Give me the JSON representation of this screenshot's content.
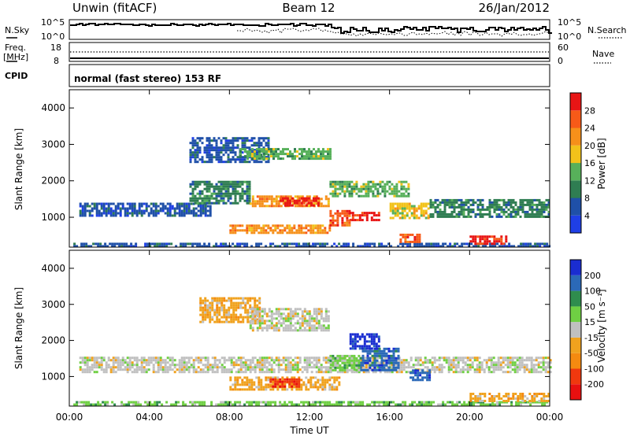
{
  "header": {
    "station": "Unwin (fitACF)",
    "beam": "Beam 12",
    "date": "26/Jan/2012"
  },
  "top_panels": {
    "nsky_label": "N.Sky",
    "nsearch_label": "N.Search",
    "freq_label_1": "Freq.",
    "freq_label_2": "[MHz]",
    "nave_label": "Nave",
    "cpid_label": "CPID",
    "cpid_text": "normal (fast stereo) 153 RF",
    "noise_ticks_left": [
      "10^5",
      "10^0"
    ],
    "noise_ticks_right": [
      "10^5",
      "10^0"
    ],
    "freq_ticks": [
      "18",
      "8"
    ],
    "nave_ticks": [
      "60",
      "0"
    ]
  },
  "chart_data": [
    {
      "type": "heatmap",
      "quantity": "Power",
      "ylabel": "Slant Range [km]",
      "xlabel": "",
      "yticks": [
        "1000",
        "2000",
        "3000",
        "4000"
      ],
      "ylim": [
        180,
        4500
      ],
      "colorbar": {
        "label": "Power [dB]",
        "ticks": [
          "4",
          "8",
          "12",
          "16",
          "20",
          "24",
          "28"
        ],
        "colors": [
          "#1f3fe6",
          "#1f50a8",
          "#2f7d52",
          "#57b05a",
          "#f2c21a",
          "#f6901a",
          "#f75a18",
          "#e81515"
        ]
      },
      "bands": [
        {
          "t0": 0.2,
          "t1": 24,
          "r0": 200,
          "r1": 300,
          "level": 1
        },
        {
          "t0": 0.5,
          "t1": 7,
          "r0": 1050,
          "r1": 1400,
          "level": 1
        },
        {
          "t0": 6,
          "t1": 10,
          "r0": 2500,
          "r1": 3200,
          "level": 1
        },
        {
          "t0": 8.5,
          "t1": 13,
          "r0": 2600,
          "r1": 2900,
          "level": 3
        },
        {
          "t0": 6,
          "t1": 9,
          "r0": 1400,
          "r1": 2000,
          "level": 2
        },
        {
          "t0": 9,
          "t1": 13,
          "r0": 1300,
          "r1": 1600,
          "level": 5
        },
        {
          "t0": 10.5,
          "t1": 12.5,
          "r0": 1350,
          "r1": 1550,
          "level": 7
        },
        {
          "t0": 13,
          "t1": 17,
          "r0": 1550,
          "r1": 2000,
          "level": 3
        },
        {
          "t0": 14,
          "t1": 15.5,
          "r0": 950,
          "r1": 1150,
          "level": 7
        },
        {
          "t0": 8,
          "t1": 13,
          "r0": 550,
          "r1": 800,
          "level": 5
        },
        {
          "t0": 13,
          "t1": 14,
          "r0": 800,
          "r1": 1200,
          "level": 6
        },
        {
          "t0": 16,
          "t1": 18,
          "r0": 1000,
          "r1": 1400,
          "level": 4
        },
        {
          "t0": 18,
          "t1": 24,
          "r0": 1000,
          "r1": 1500,
          "level": 2
        },
        {
          "t0": 20,
          "t1": 21.8,
          "r0": 300,
          "r1": 500,
          "level": 7
        },
        {
          "t0": 16.5,
          "t1": 17.5,
          "r0": 300,
          "r1": 550,
          "level": 6
        }
      ]
    },
    {
      "type": "heatmap",
      "quantity": "Velocity",
      "ylabel": "Slant Range [km]",
      "xlabel": "Time UT",
      "xticks": [
        "00:00",
        "04:00",
        "08:00",
        "12:00",
        "16:00",
        "20:00",
        "00:00"
      ],
      "yticks": [
        "1000",
        "2000",
        "3000",
        "4000"
      ],
      "ylim": [
        180,
        4500
      ],
      "colorbar": {
        "label": "Velocity [m s⁻¹]",
        "ticks": [
          "200",
          "100",
          "50",
          "15",
          "-15",
          "-50",
          "-100",
          "-200"
        ],
        "colors": [
          "#1a2dd1",
          "#2b69b8",
          "#2f8d4e",
          "#6fcf43",
          "#c0c0c0",
          "#f0a21e",
          "#f58a10",
          "#f0380e",
          "#e81010"
        ]
      },
      "bands": [
        {
          "t0": 0.2,
          "t1": 24,
          "r0": 200,
          "r1": 320,
          "level": 3
        },
        {
          "t0": 0.5,
          "t1": 24,
          "r0": 1100,
          "r1": 1550,
          "level": 4
        },
        {
          "t0": 6.5,
          "t1": 9.5,
          "r0": 2500,
          "r1": 3200,
          "level": 5
        },
        {
          "t0": 9,
          "t1": 13,
          "r0": 2300,
          "r1": 2900,
          "level": 4
        },
        {
          "t0": 8,
          "t1": 13.5,
          "r0": 650,
          "r1": 1000,
          "level": 5
        },
        {
          "t0": 10,
          "t1": 11.5,
          "r0": 750,
          "r1": 950,
          "level": 7
        },
        {
          "t0": 14.5,
          "t1": 16.5,
          "r0": 1200,
          "r1": 1800,
          "level": 1
        },
        {
          "t0": 14,
          "t1": 15.5,
          "r0": 1800,
          "r1": 2200,
          "level": 0
        },
        {
          "t0": 17,
          "t1": 18,
          "r0": 900,
          "r1": 1200,
          "level": 1
        },
        {
          "t0": 13,
          "t1": 14.5,
          "r0": 1200,
          "r1": 1600,
          "level": 3
        },
        {
          "t0": 20,
          "t1": 24,
          "r0": 300,
          "r1": 550,
          "level": 5
        }
      ]
    }
  ]
}
